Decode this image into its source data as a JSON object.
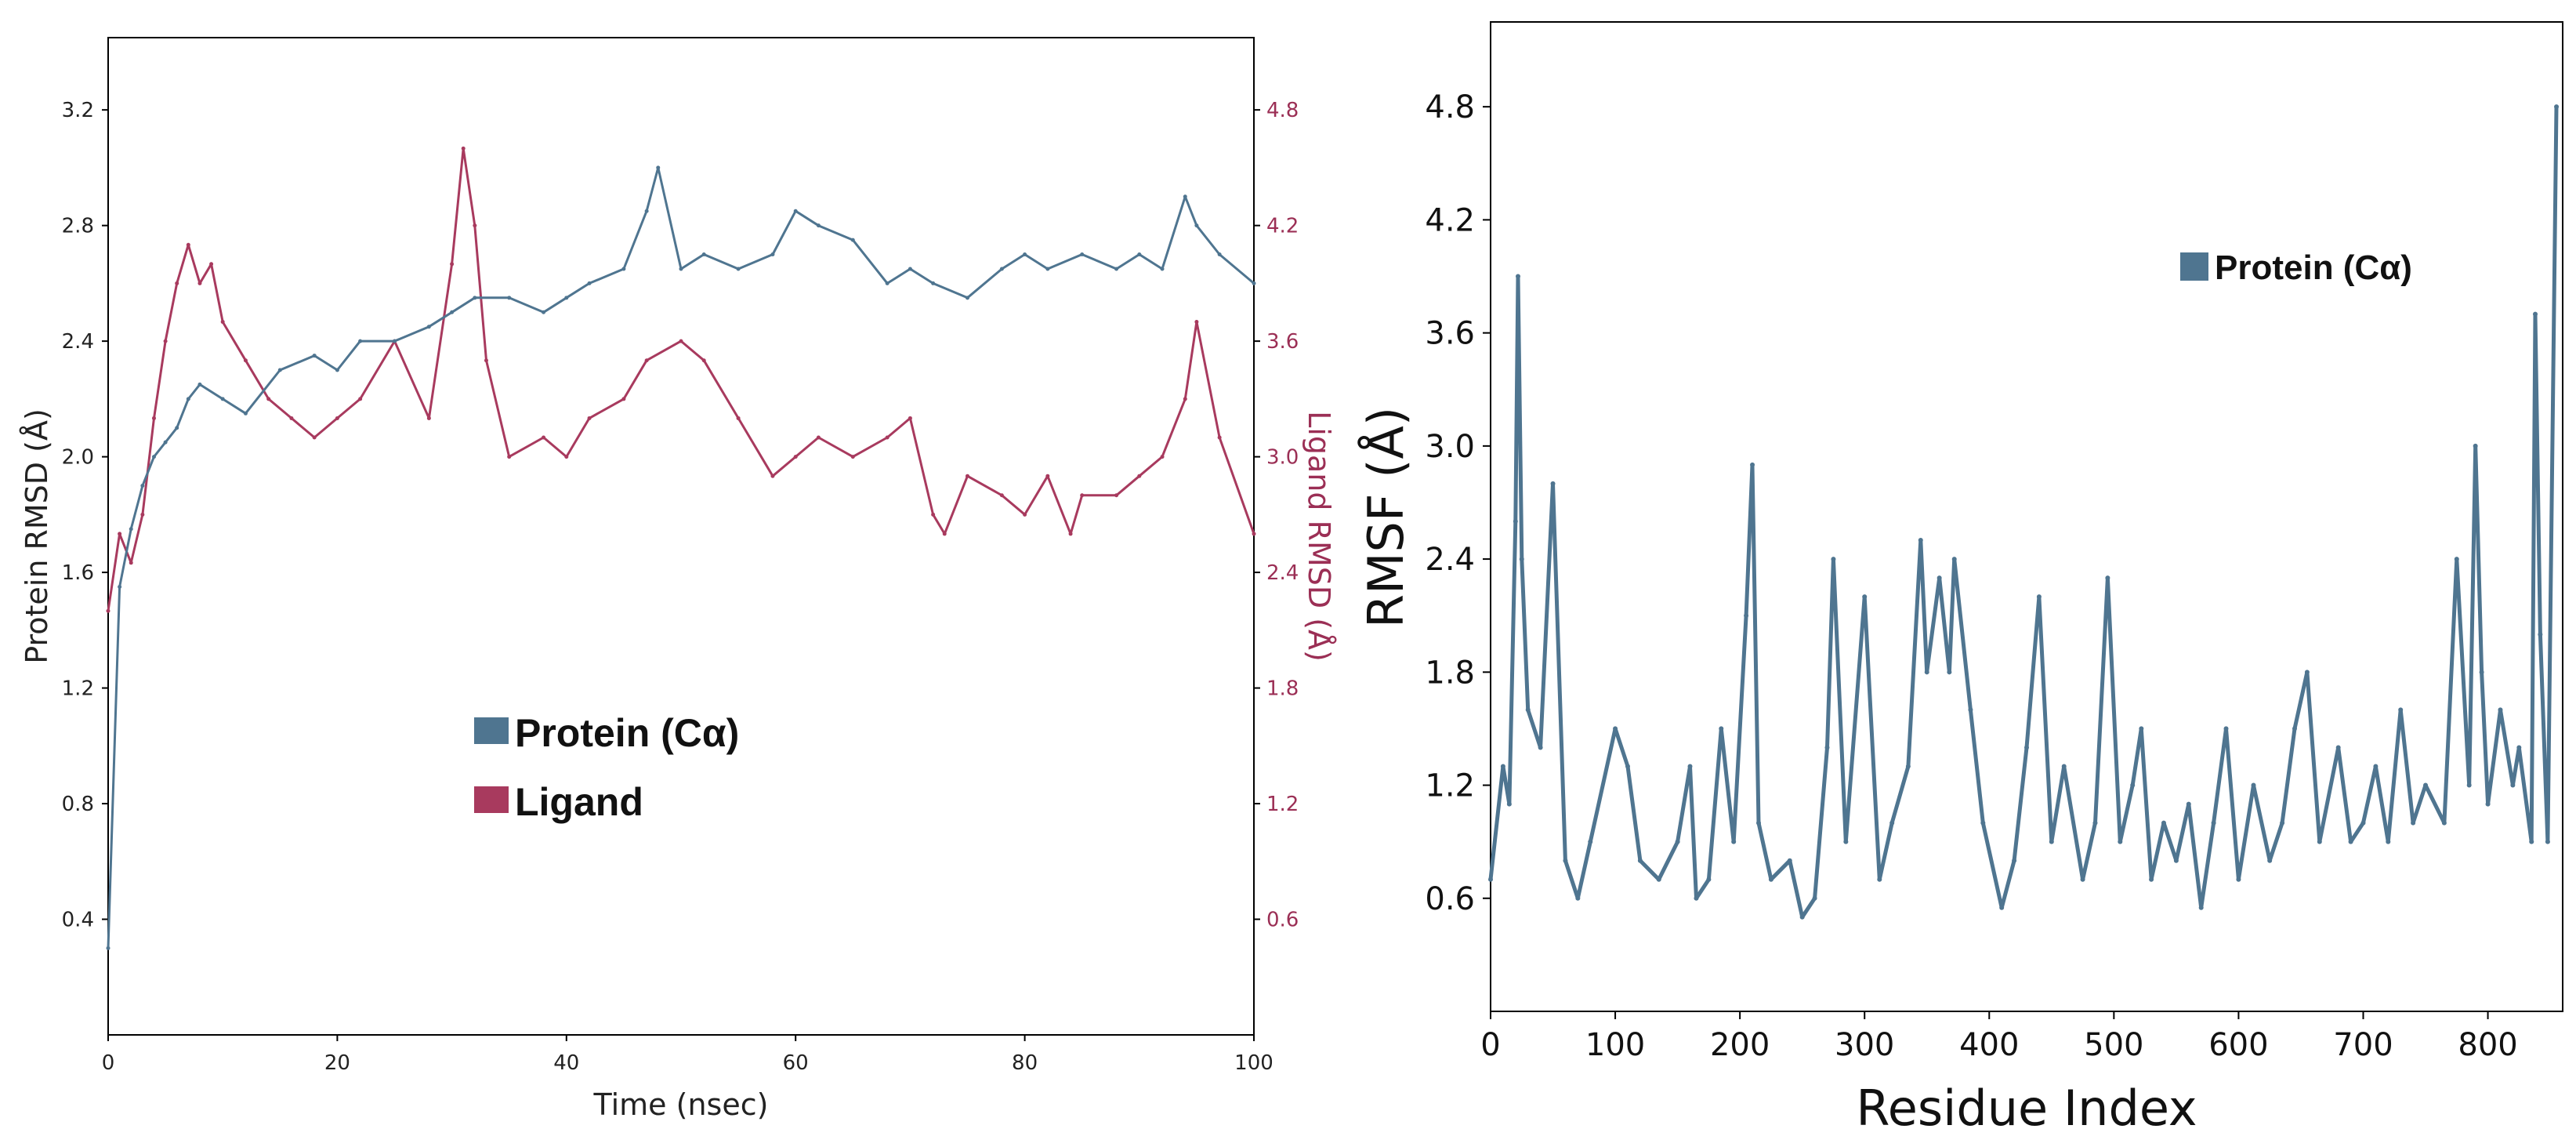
{
  "chart_data": [
    {
      "type": "line",
      "title": "",
      "xlabel": "Time (nsec)",
      "ylabel": "Protein RMSD (Å)",
      "y2label": "Ligand RMSD (Å)",
      "xlim": [
        0,
        100
      ],
      "ylim": [
        0,
        3.45
      ],
      "y2lim": [
        0,
        5.175
      ],
      "x_ticks": [
        "0",
        "20",
        "40",
        "60",
        "80",
        "100"
      ],
      "y_ticks": [
        "0.4",
        "0.8",
        "1.2",
        "1.6",
        "2.0",
        "2.4",
        "2.8",
        "3.2"
      ],
      "y2_ticks": [
        "0.6",
        "1.2",
        "1.8",
        "2.4",
        "3.0",
        "3.6",
        "4.2",
        "4.8"
      ],
      "legend_position": "center-left",
      "colors": {
        "protein": "#4f7590",
        "ligand": "#a83a5e"
      },
      "series": [
        {
          "name": "Protein (Cα)",
          "axis": "left",
          "x": [
            0,
            1,
            2,
            3,
            4,
            5,
            6,
            7,
            8,
            10,
            12,
            15,
            18,
            20,
            22,
            25,
            28,
            30,
            32,
            35,
            38,
            40,
            42,
            45,
            47,
            48,
            50,
            52,
            55,
            58,
            60,
            62,
            65,
            68,
            70,
            72,
            75,
            78,
            80,
            82,
            85,
            88,
            90,
            92,
            94,
            95,
            97,
            100
          ],
          "values": [
            0.3,
            1.55,
            1.75,
            1.9,
            2.0,
            2.05,
            2.1,
            2.2,
            2.25,
            2.2,
            2.15,
            2.3,
            2.35,
            2.3,
            2.4,
            2.4,
            2.45,
            2.5,
            2.55,
            2.55,
            2.5,
            2.55,
            2.6,
            2.65,
            2.85,
            3.0,
            2.65,
            2.7,
            2.65,
            2.7,
            2.85,
            2.8,
            2.75,
            2.6,
            2.65,
            2.6,
            2.55,
            2.65,
            2.7,
            2.65,
            2.7,
            2.65,
            2.7,
            2.65,
            2.9,
            2.8,
            2.7,
            2.6
          ]
        },
        {
          "name": "Ligand",
          "axis": "right",
          "x": [
            0,
            1,
            2,
            3,
            4,
            5,
            6,
            7,
            8,
            9,
            10,
            12,
            14,
            16,
            18,
            20,
            22,
            25,
            28,
            30,
            31,
            32,
            33,
            35,
            38,
            40,
            42,
            45,
            47,
            50,
            52,
            55,
            58,
            60,
            62,
            65,
            68,
            70,
            72,
            73,
            75,
            78,
            80,
            82,
            84,
            85,
            88,
            90,
            92,
            94,
            95,
            97,
            100
          ],
          "values": [
            2.2,
            2.6,
            2.45,
            2.7,
            3.2,
            3.6,
            3.9,
            4.1,
            3.9,
            4.0,
            3.7,
            3.5,
            3.3,
            3.2,
            3.1,
            3.2,
            3.3,
            3.6,
            3.2,
            4.0,
            4.6,
            4.2,
            3.5,
            3.0,
            3.1,
            3.0,
            3.2,
            3.3,
            3.5,
            3.6,
            3.5,
            3.2,
            2.9,
            3.0,
            3.1,
            3.0,
            3.1,
            3.2,
            2.7,
            2.6,
            2.9,
            2.8,
            2.7,
            2.9,
            2.6,
            2.8,
            2.8,
            2.9,
            3.0,
            3.3,
            3.7,
            3.1,
            2.6
          ]
        }
      ]
    },
    {
      "type": "line",
      "title": "",
      "xlabel": "Residue Index",
      "ylabel": "RMSF (Å)",
      "xlim": [
        0,
        860
      ],
      "ylim": [
        0,
        5.25
      ],
      "x_ticks": [
        "0",
        "100",
        "200",
        "300",
        "400",
        "500",
        "600",
        "700",
        "800"
      ],
      "y_ticks": [
        "0.6",
        "1.2",
        "1.8",
        "2.4",
        "3.0",
        "3.6",
        "4.2",
        "4.8"
      ],
      "legend_position": "top-right",
      "colors": {
        "protein": "#4f7590"
      },
      "series": [
        {
          "name": "Protein (Cα)",
          "x": [
            0,
            10,
            15,
            20,
            22,
            25,
            30,
            40,
            50,
            60,
            70,
            80,
            100,
            110,
            120,
            135,
            150,
            160,
            165,
            175,
            185,
            195,
            205,
            210,
            215,
            225,
            240,
            250,
            260,
            270,
            275,
            285,
            300,
            312,
            322,
            335,
            345,
            350,
            360,
            368,
            372,
            385,
            395,
            410,
            420,
            430,
            440,
            450,
            460,
            475,
            485,
            495,
            505,
            515,
            522,
            530,
            540,
            550,
            560,
            570,
            580,
            590,
            600,
            612,
            625,
            635,
            645,
            655,
            665,
            680,
            690,
            700,
            710,
            720,
            730,
            740,
            750,
            765,
            775,
            785,
            790,
            795,
            800,
            810,
            820,
            825,
            835,
            838,
            842,
            848,
            855
          ],
          "values": [
            0.7,
            1.3,
            1.1,
            2.6,
            3.9,
            2.4,
            1.6,
            1.4,
            2.8,
            0.8,
            0.6,
            0.9,
            1.5,
            1.3,
            0.8,
            0.7,
            0.9,
            1.3,
            0.6,
            0.7,
            1.5,
            0.9,
            2.1,
            2.9,
            1.0,
            0.7,
            0.8,
            0.5,
            0.6,
            1.4,
            2.4,
            0.9,
            2.2,
            0.7,
            1.0,
            1.3,
            2.5,
            1.8,
            2.3,
            1.8,
            2.4,
            1.6,
            1.0,
            0.55,
            0.8,
            1.4,
            2.2,
            0.9,
            1.3,
            0.7,
            1.0,
            2.3,
            0.9,
            1.2,
            1.5,
            0.7,
            1.0,
            0.8,
            1.1,
            0.55,
            1.0,
            1.5,
            0.7,
            1.2,
            0.8,
            1.0,
            1.5,
            1.8,
            0.9,
            1.4,
            0.9,
            1.0,
            1.3,
            0.9,
            1.6,
            1.0,
            1.2,
            1.0,
            2.4,
            1.2,
            3.0,
            1.8,
            1.1,
            1.6,
            1.2,
            1.4,
            0.9,
            3.7,
            2.0,
            0.9,
            4.8
          ]
        }
      ]
    }
  ]
}
